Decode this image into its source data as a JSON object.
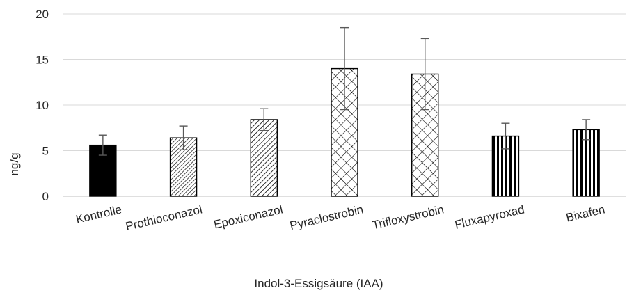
{
  "chart_data": {
    "type": "bar",
    "title": "",
    "xlabel": "Indol-3-Essigsäure (IAA)",
    "ylabel": "ng/g",
    "ylim": [
      0,
      20
    ],
    "yticks": [
      "0",
      "5",
      "10",
      "15",
      "20"
    ],
    "grid": true,
    "categories": [
      "Kontrolle",
      "Prothioconazol",
      "Epoxiconazol",
      "Pyraclostrobin",
      "Trifloxystrobin",
      "Fluxapyroxad",
      "Bixafen"
    ],
    "values": [
      5.6,
      6.4,
      8.4,
      14.0,
      13.4,
      6.6,
      7.3
    ],
    "errors": [
      1.1,
      1.3,
      1.2,
      4.5,
      3.9,
      1.4,
      1.1
    ],
    "fills": [
      "solid",
      "diag-fine",
      "diag-medium",
      "crosshatch",
      "crosshatch",
      "vertical",
      "vertical"
    ],
    "colors": {
      "bar": "#000000",
      "grid": "#d9d9d9",
      "errorbar": "#595959",
      "text": "#262626"
    }
  }
}
